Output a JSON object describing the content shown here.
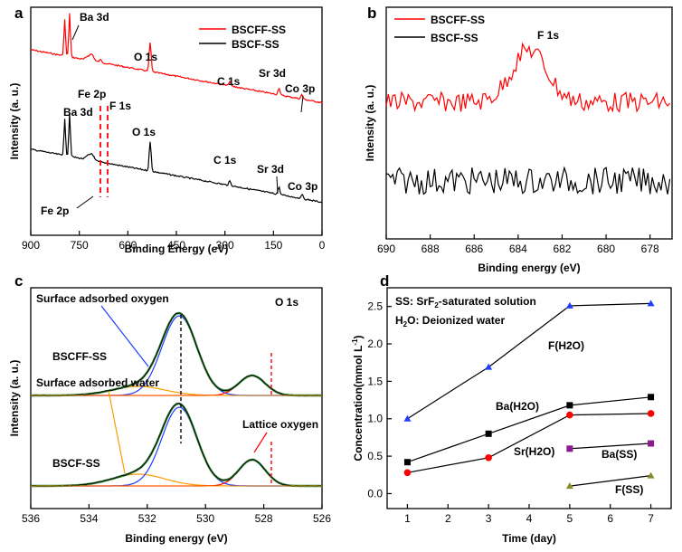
{
  "colors": {
    "red": "#ff0000",
    "black": "#000000",
    "blue": "#1f3cff",
    "green": "#2e7d32",
    "orange": "#ff9900",
    "purple": "#8b1a8b",
    "olive": "#8a8a2a"
  },
  "chart_data": [
    {
      "panel": "a",
      "type": "line",
      "xlabel": "Binding Energy (eV)",
      "ylabel": "Intensity (a. u.)",
      "xlim": [
        900,
        0
      ],
      "xticks": [
        "900",
        "750",
        "600",
        "450",
        "300",
        "150",
        "0"
      ],
      "legend": [
        "BSCFF-SS",
        "BSCF-SS"
      ],
      "legend_position": "top-right",
      "annotations": [
        "Ba 3d",
        "Fe 2p",
        "F 1s",
        "O 1s",
        "C 1s",
        "Sr 3d",
        "Co 3p",
        "Ba 3d",
        "O 1s",
        "C 1s",
        "Sr 3d",
        "Co 3p",
        "Fe 2p"
      ],
      "peaks_ev": {
        "Ba 3d": 780,
        "Fe 2p": 711,
        "F 1s": 684,
        "O 1s": 531,
        "C 1s": 285,
        "Sr 3d": 133,
        "Co 3p": 62
      }
    },
    {
      "panel": "b",
      "type": "line",
      "xlabel": "Binding energy (eV)",
      "ylabel": "Intensity (a. u.)",
      "xlim": [
        690,
        677
      ],
      "xticks": [
        "690",
        "688",
        "686",
        "684",
        "682",
        "680",
        "678"
      ],
      "legend": [
        "BSCFF-SS",
        "BSCF-SS"
      ],
      "legend_position": "top-left",
      "annotations": [
        "F 1s"
      ],
      "peak_ev": 683.5
    },
    {
      "panel": "c",
      "type": "line",
      "xlabel": "Binding energy (eV)",
      "ylabel": "Intensity (a. u.)",
      "xlim": [
        536,
        526
      ],
      "xticks": [
        "536",
        "534",
        "532",
        "530",
        "528",
        "526"
      ],
      "annotations": [
        "Surface adsorbed oxygen",
        "O 1s",
        "BSCFF-SS",
        "Surface adsorbed water",
        "Lattice oxygen",
        "BSCF-SS"
      ],
      "components_ev": {
        "surface adsorbed": 532.3,
        "main": 530.9,
        "lattice": 528.4
      }
    },
    {
      "panel": "d",
      "type": "line",
      "xlabel": "Time (day)",
      "ylabel": "Concentration(mmol L",
      "ylabel_sup": "-1",
      "ylabel_end": ")",
      "xlim": [
        0.5,
        7.5
      ],
      "ylim": [
        -0.2,
        2.75
      ],
      "xticks": [
        "1",
        "2",
        "3",
        "4",
        "5",
        "6",
        "7"
      ],
      "yticks": [
        "0.0",
        "0.5",
        "1.0",
        "1.5",
        "2.0",
        "2.5"
      ],
      "notes": [
        "SS: SrF",
        "2",
        "-saturated solution",
        "H",
        "2",
        "O: Deionized water"
      ],
      "series": [
        {
          "name": "F(H2O)",
          "marker": "triangle",
          "color": "#1f3cff",
          "x": [
            1,
            3,
            5,
            7
          ],
          "y": [
            1.0,
            1.69,
            2.51,
            2.54
          ]
        },
        {
          "name": "Ba(H2O)",
          "marker": "square",
          "color": "#000000",
          "x": [
            1,
            3,
            5,
            7
          ],
          "y": [
            0.42,
            0.8,
            1.18,
            1.29
          ]
        },
        {
          "name": "Sr(H2O)",
          "marker": "circle",
          "color": "#ff0000",
          "x": [
            1,
            3,
            5,
            7
          ],
          "y": [
            0.28,
            0.48,
            1.05,
            1.07
          ]
        },
        {
          "name": "Ba(SS)",
          "marker": "square",
          "color": "#8b1a8b",
          "x": [
            5,
            7
          ],
          "y": [
            0.6,
            0.67
          ]
        },
        {
          "name": "F(SS)",
          "marker": "triangle",
          "color": "#8a8a2a",
          "x": [
            5,
            7
          ],
          "y": [
            0.1,
            0.24
          ]
        }
      ]
    }
  ],
  "panel_labels": [
    "a",
    "b",
    "c",
    "d"
  ]
}
